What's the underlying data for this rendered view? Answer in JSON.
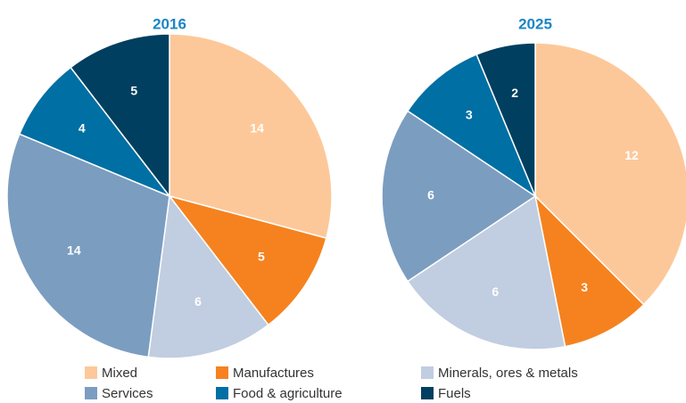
{
  "chart_data": [
    {
      "type": "pie",
      "title": "2016",
      "values": [
        14,
        5,
        6,
        14,
        4,
        5
      ]
    },
    {
      "type": "pie",
      "title": "2025",
      "values": [
        12,
        3,
        6,
        6,
        3,
        2
      ]
    }
  ],
  "legend": {
    "labels": [
      "Mixed",
      "Manufactures",
      "Minerals, ores & metals",
      "Services",
      "Food & agriculture",
      "Fuels"
    ],
    "colors": [
      "#fdc899",
      "#f5821f",
      "#c1cde0",
      "#7b9dc0",
      "#006fa3",
      "#003f5f"
    ]
  }
}
